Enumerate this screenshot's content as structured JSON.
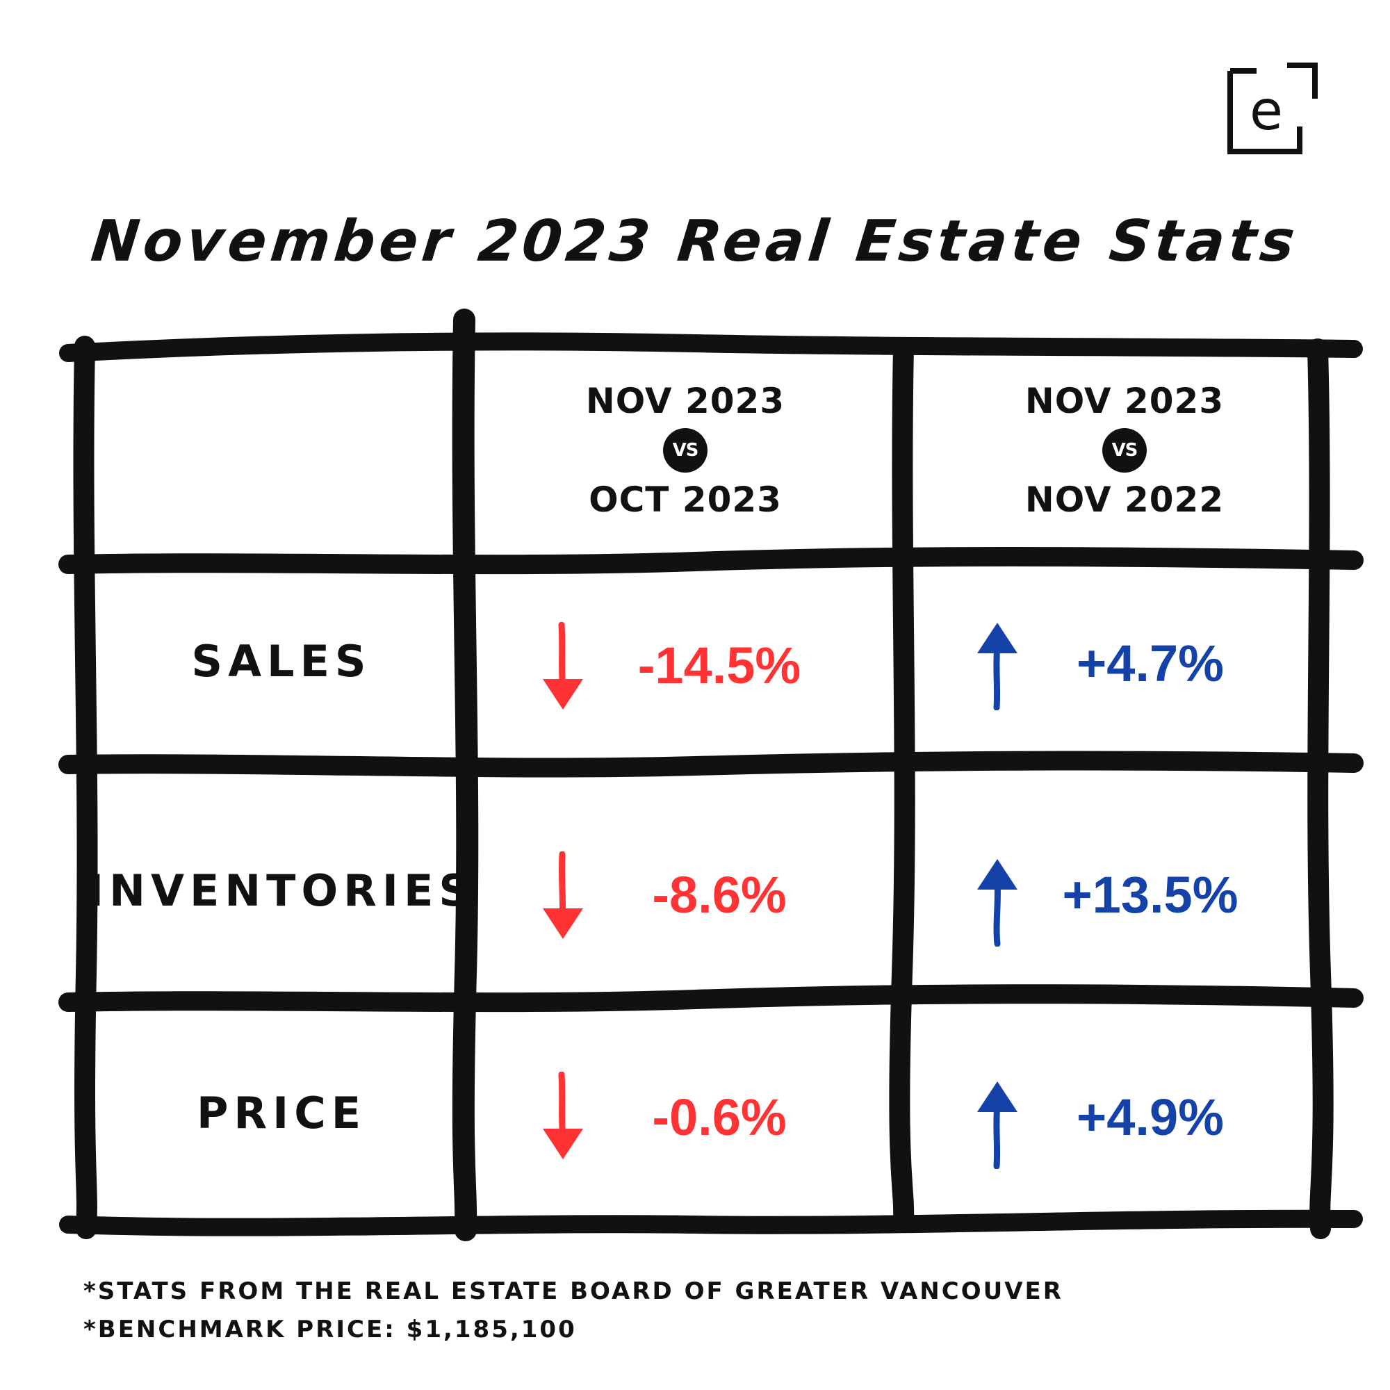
{
  "title": "November 2023 Real Estate Stats",
  "logo_letter": "e",
  "colors": {
    "decrease": "#ff3333",
    "increase": "#1442a8",
    "ink": "#111111"
  },
  "icons": {
    "decrease": "arrow-down-icon",
    "increase": "arrow-up-icon",
    "logo": "brand-logo-icon"
  },
  "headers": [
    {
      "top": "NOV 2023",
      "vs": "VS",
      "bottom": "OCT 2023"
    },
    {
      "top": "NOV 2023",
      "vs": "VS",
      "bottom": "NOV 2022"
    }
  ],
  "chart_data": {
    "type": "table",
    "title": "November 2023 Real Estate Stats",
    "columns": [
      "NOV 2023 VS OCT 2023",
      "NOV 2023 VS NOV 2022"
    ],
    "rows": [
      {
        "label": "SALES",
        "values": [
          "-14.5%",
          "+4.7%"
        ],
        "numbers": [
          -14.5,
          4.7
        ],
        "directions": [
          "down",
          "up"
        ]
      },
      {
        "label": "INVENTORIES",
        "values": [
          "-8.6%",
          "+13.5%"
        ],
        "numbers": [
          -8.6,
          13.5
        ],
        "directions": [
          "down",
          "up"
        ]
      },
      {
        "label": "PRICE",
        "values": [
          "-0.6%",
          "+4.9%"
        ],
        "numbers": [
          -0.6,
          4.9
        ],
        "directions": [
          "down",
          "up"
        ]
      }
    ]
  },
  "footnotes": [
    "*STATS FROM THE REAL ESTATE BOARD OF GREATER VANCOUVER",
    "*BENCHMARK PRICE: $1,185,100"
  ]
}
